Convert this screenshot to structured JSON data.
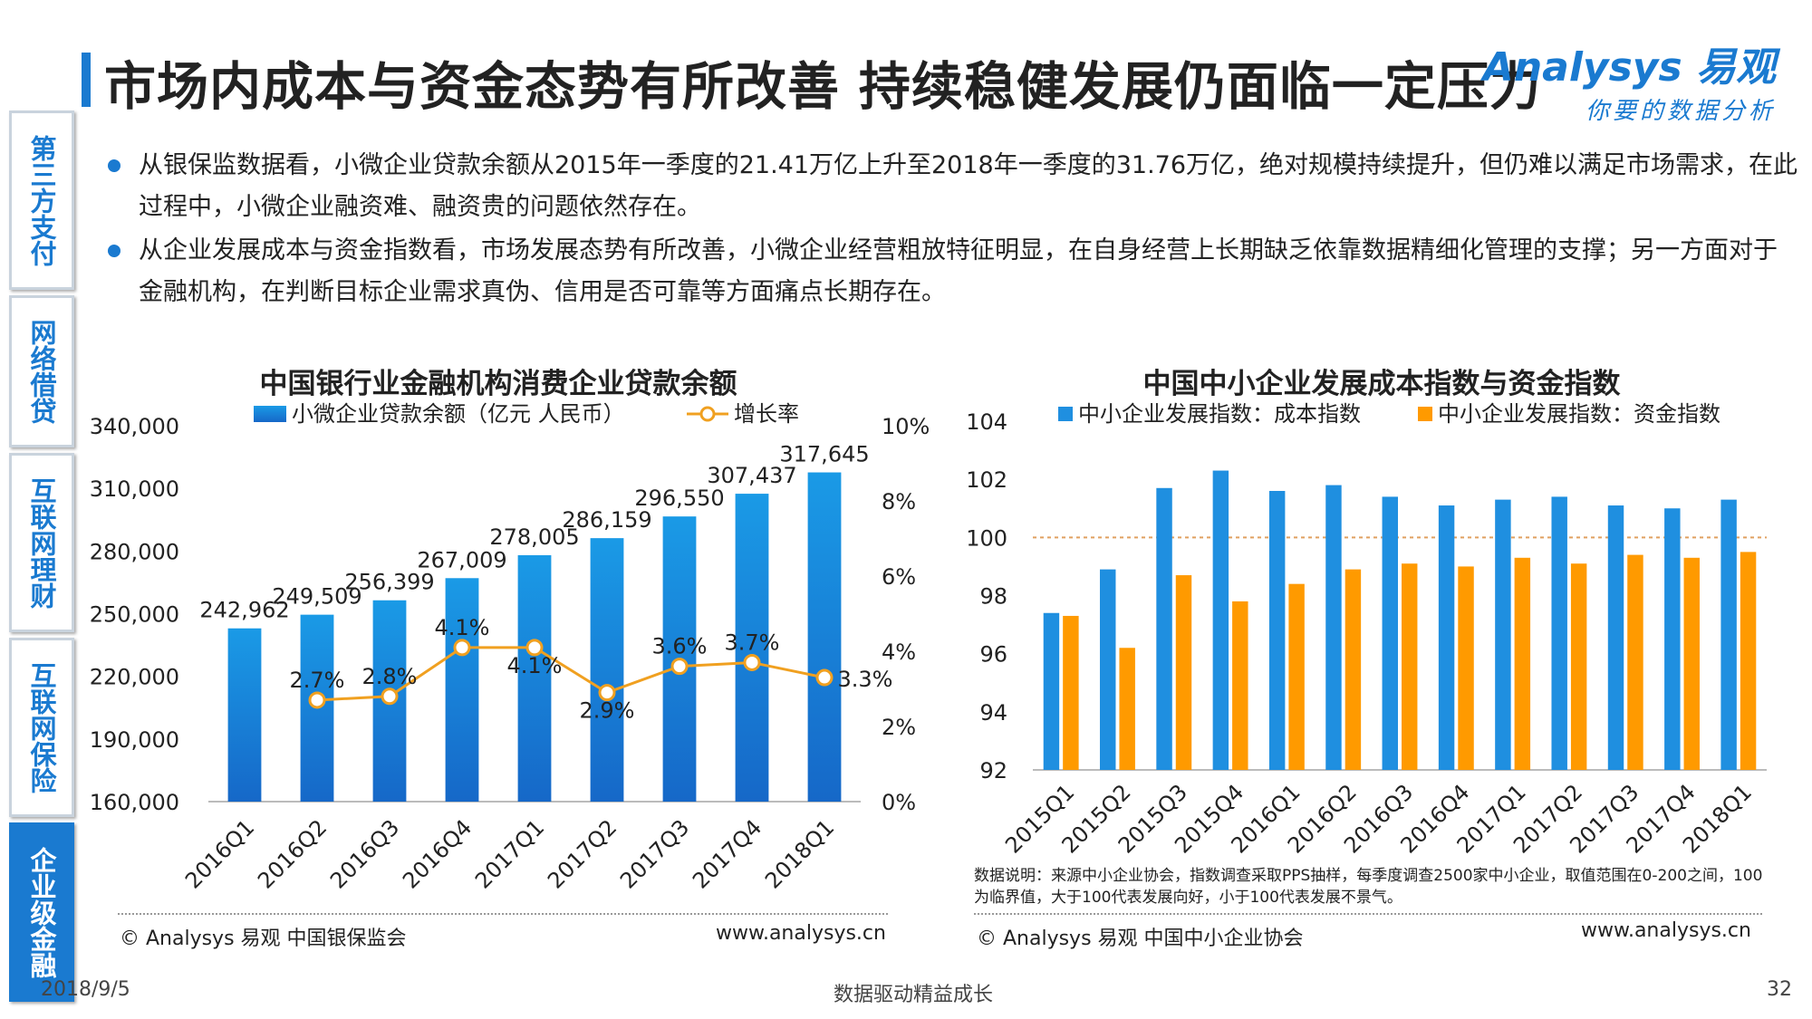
{
  "header": {
    "title": "市场内成本与资金态势有所改善  持续稳健发展仍面临一定压力",
    "logo_main": "Analysys 易观",
    "logo_sub": "你要的数据分析"
  },
  "sidebar": {
    "items": [
      {
        "label": "第三方支付"
      },
      {
        "label": "网络借贷"
      },
      {
        "label": "互联网理财"
      },
      {
        "label": "互联网保险"
      },
      {
        "label": "企业级金融"
      }
    ]
  },
  "bullets": [
    {
      "text": "从银保监数据看，小微企业贷款余额从2015年一季度的21.41万亿上升至2018年一季度的31.76万亿，绝对规模持续提升，但仍难以满足市场需求，在此过程中，小微企业融资难、融资贵的问题依然存在。"
    },
    {
      "text": "从企业发展成本与资金指数看，市场发展态势有所改善，小微企业经营粗放特征明显，在自身经营上长期缺乏依靠数据精细化管理的支撑；另一方面对于金融机构，在判断目标企业需求真伪、信用是否可靠等方面痛点长期存在。"
    }
  ],
  "chart_data": [
    {
      "type": "bar",
      "title": "中国银行业金融机构消费企业贷款余额",
      "categories": [
        "2016Q1",
        "2016Q2",
        "2016Q3",
        "2016Q4",
        "2017Q1",
        "2017Q2",
        "2017Q3",
        "2017Q4",
        "2018Q1"
      ],
      "series": [
        {
          "name": "小微企业贷款余额（亿元 人民币）",
          "axis": "left",
          "type": "bar",
          "values": [
            242962,
            249509,
            256399,
            267009,
            278005,
            286159,
            296550,
            307437,
            317645
          ],
          "labels": [
            "242,962",
            "249,509",
            "256,399",
            "267,009",
            "278,005",
            "286,159",
            "296,550",
            "307,437",
            "317,645"
          ],
          "color": "#1f88dc"
        },
        {
          "name": "增长率",
          "axis": "right",
          "type": "line",
          "values": [
            null,
            2.7,
            2.8,
            4.1,
            4.1,
            2.9,
            3.6,
            3.7,
            3.3
          ],
          "labels": [
            "",
            "2.7%",
            "2.8%",
            "4.1%",
            "4.1%",
            "2.9%",
            "3.6%",
            "3.7%",
            "3.3%"
          ],
          "color": "#f0a020"
        }
      ],
      "ylim": [
        160000,
        340000
      ],
      "yticks": [
        "160,000",
        "190,000",
        "220,000",
        "250,000",
        "280,000",
        "310,000",
        "340,000"
      ],
      "y2lim": [
        0,
        10
      ],
      "y2ticks": [
        "0%",
        "2%",
        "4%",
        "6%",
        "8%",
        "10%"
      ],
      "legend": "top",
      "grid": false
    },
    {
      "type": "bar",
      "title": "中国中小企业发展成本指数与资金指数",
      "categories": [
        "2015Q1",
        "2015Q2",
        "2015Q3",
        "2015Q4",
        "2016Q1",
        "2016Q2",
        "2016Q3",
        "2016Q4",
        "2017Q1",
        "2017Q2",
        "2017Q3",
        "2017Q4",
        "2018Q1"
      ],
      "series": [
        {
          "name": "中小企业发展指数：成本指数",
          "color": "#1f8fe0",
          "values": [
            97.4,
            98.9,
            101.7,
            102.3,
            101.6,
            101.8,
            101.4,
            101.1,
            101.3,
            101.4,
            101.1,
            101.0,
            101.3
          ]
        },
        {
          "name": "中小企业发展指数：资金指数",
          "color": "#ff9a00",
          "values": [
            97.3,
            96.2,
            98.7,
            97.8,
            98.4,
            98.9,
            99.1,
            99.0,
            99.3,
            99.1,
            99.4,
            99.3,
            99.5
          ]
        }
      ],
      "ylim": [
        92,
        104
      ],
      "yticks": [
        "92",
        "94",
        "96",
        "98",
        "100",
        "102",
        "104"
      ],
      "reference_line": 100,
      "legend": "top",
      "grid": false
    }
  ],
  "sources": {
    "left": "© Analysys 易观 中国银保监会",
    "left_url": "www.analysys.cn",
    "right": "© Analysys 易观 中国中小企业协会",
    "right_url": "www.analysys.cn",
    "note": "数据说明：来源中小企业协会，指数调查采取PPS抽样，每季度调查2500家中小企业，取值范围在0-200之间，100为临界值，大于100代表发展向好，小于100代表发展不景气。"
  },
  "footer": {
    "date": "2018/9/5",
    "slogan": "数据驱动精益成长",
    "page": "32"
  }
}
